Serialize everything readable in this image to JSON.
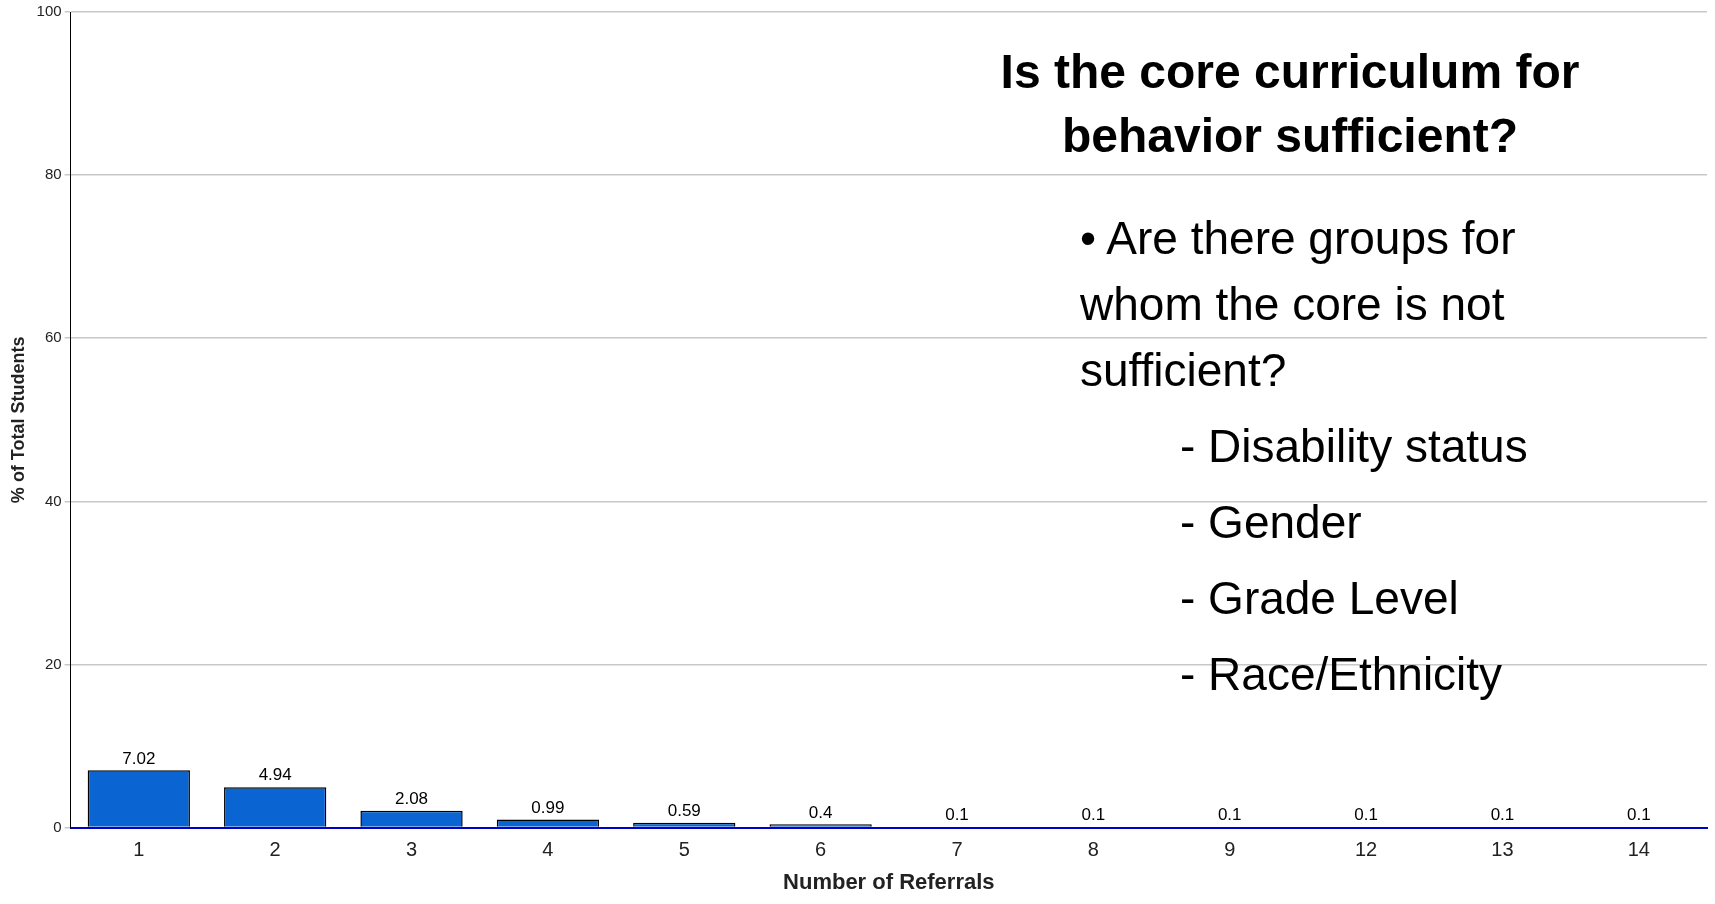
{
  "chart_data": {
    "type": "bar",
    "title": "Is the core curriculum for behavior sufficient?",
    "annotations": [
      "• Are there groups for whom the core is not sufficient?",
      "- Disability status",
      "- Gender",
      "- Grade Level",
      "- Race/Ethnicity"
    ],
    "xlabel": "Number of Referrals",
    "ylabel": "% of Total Students",
    "categories": [
      "1",
      "2",
      "3",
      "4",
      "5",
      "6",
      "7",
      "8",
      "9",
      "12",
      "13",
      "14"
    ],
    "values": [
      7.02,
      4.94,
      2.08,
      0.99,
      0.59,
      0.4,
      0.1,
      0.1,
      0.1,
      0.1,
      0.1,
      0.1
    ],
    "color": "#0a64d2",
    "ylim": [
      0,
      100
    ],
    "yticks": [
      0,
      20,
      40,
      60,
      80,
      100
    ],
    "grid": "y",
    "data_labels": true,
    "legend": false
  }
}
